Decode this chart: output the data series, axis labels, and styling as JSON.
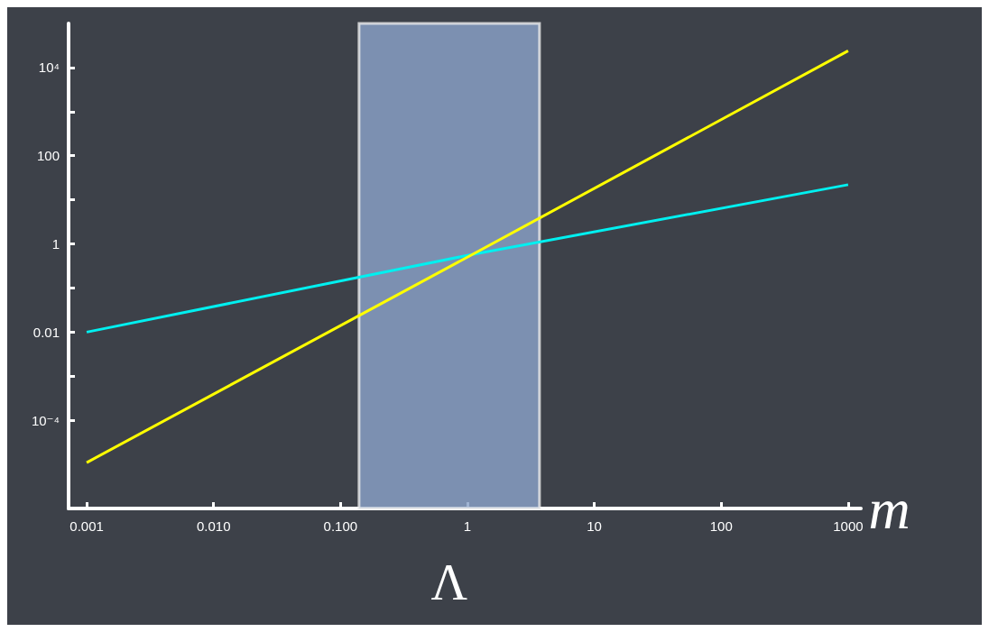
{
  "chart_data": {
    "type": "line",
    "xlabel": "m",
    "log": "xy",
    "xlim": [
      0.00072,
      1260
    ],
    "ylim": [
      1e-06,
      100000
    ],
    "xticks": [
      {
        "value": 0.001,
        "label": "0.001"
      },
      {
        "value": 0.01,
        "label": "0.010"
      },
      {
        "value": 0.1,
        "label": "0.100"
      },
      1,
      10,
      100,
      1000
    ],
    "yticks": [
      {
        "value": 0.001,
        "label": null
      },
      {
        "value": 0.0001,
        "label": "10⁻⁴"
      },
      0.01,
      {
        "value": 0.1,
        "label": null
      },
      1,
      {
        "value": 10,
        "label": null
      },
      100,
      {
        "value": 1000,
        "label": null
      },
      {
        "value": 10000,
        "label": "10⁴"
      }
    ],
    "series": [
      {
        "color": "#00f0f0",
        "x": [
          0.001,
          1,
          1000
        ],
        "values": [
          0.01,
          0.55,
          22
        ]
      },
      {
        "color": "#ffff00",
        "x": [
          0.001,
          1,
          1000
        ],
        "values": [
          1.1e-05,
          0.5,
          24000
        ]
      }
    ],
    "bands": [
      {
        "axis": "x",
        "from": 0.14,
        "to": 3.7,
        "label": "Λ",
        "color": "#8aa2c8"
      }
    ],
    "grid": false,
    "marker": "none",
    "line_style": "solid"
  }
}
